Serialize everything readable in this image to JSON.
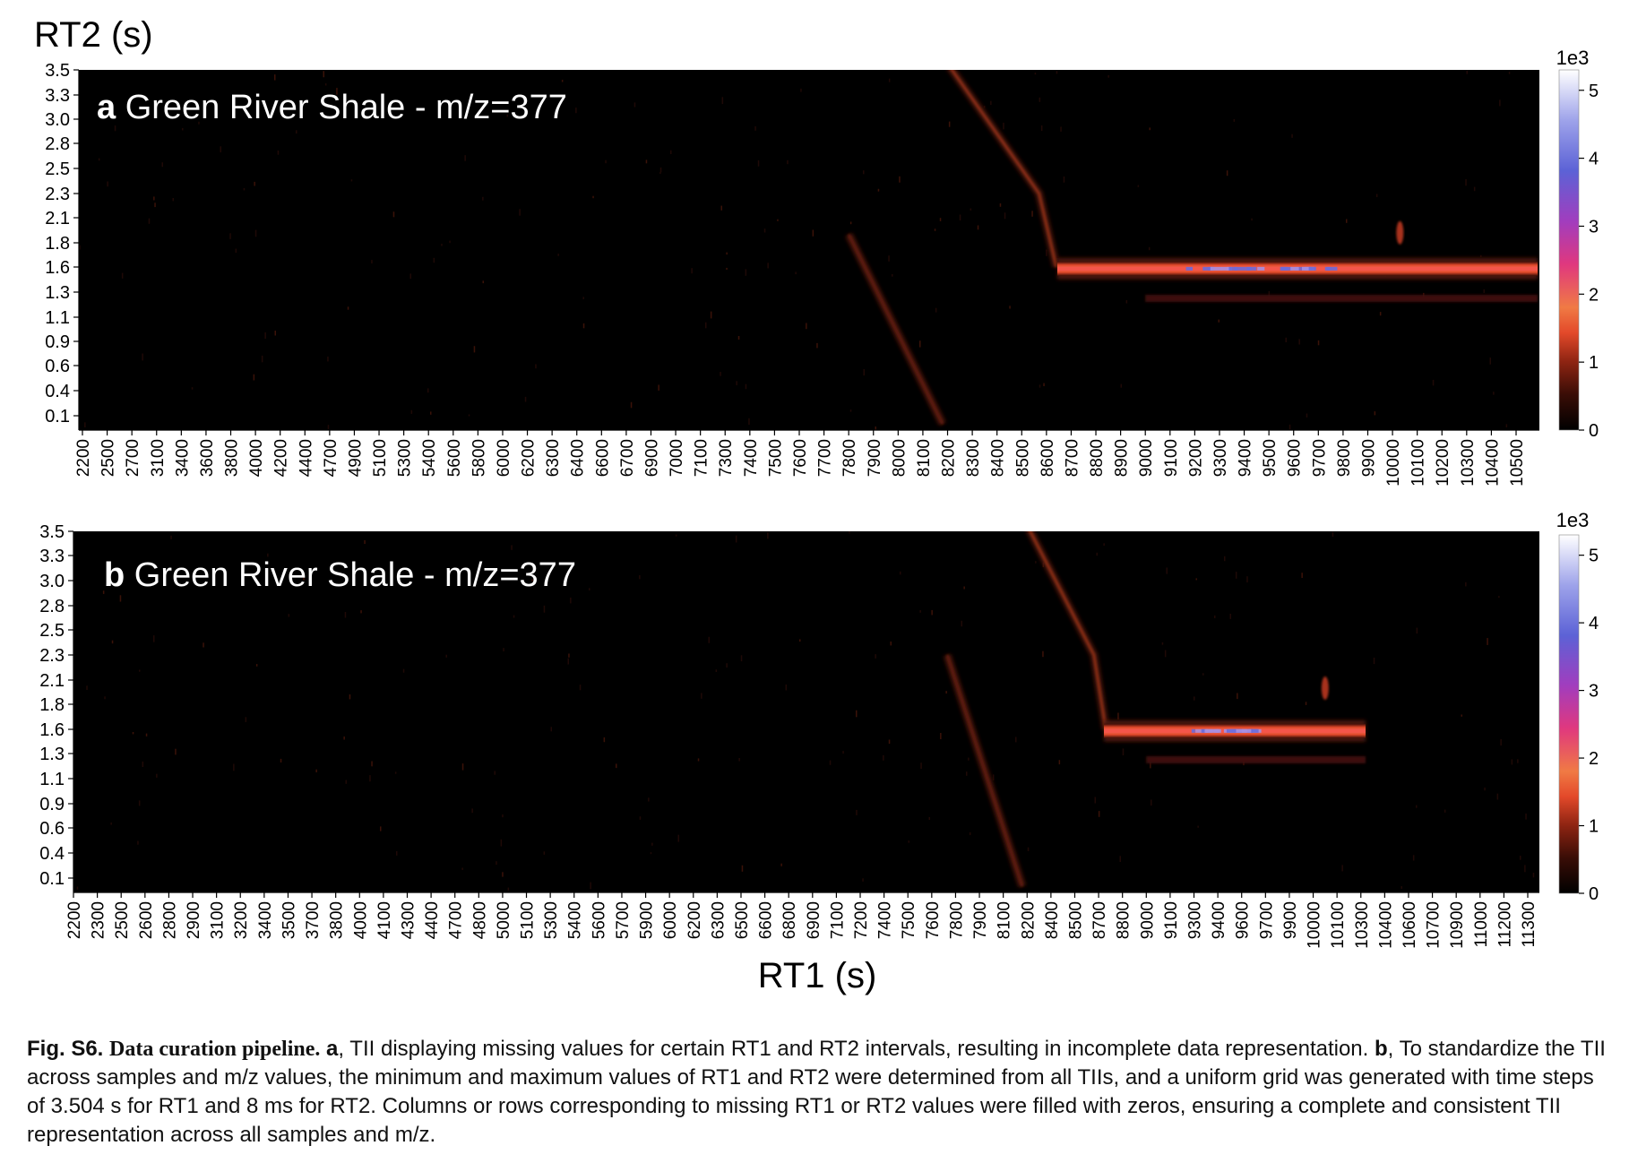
{
  "figure": {
    "ylabel": "RT2 (s)",
    "xlabel": "RT1 (s)"
  },
  "chart_data": [
    {
      "type": "heatmap",
      "panel_letter": "a",
      "title": "Green River Shale - m/z=377",
      "ylabel": "RT2 (s)",
      "xlabel": "RT1 (s)",
      "y_ticks": [
        "3.5",
        "3.3",
        "3.0",
        "2.8",
        "2.5",
        "2.3",
        "2.1",
        "1.8",
        "1.6",
        "1.3",
        "1.1",
        "0.9",
        "0.6",
        "0.4",
        "0.1"
      ],
      "x_ticks": [
        "2200",
        "2500",
        "2700",
        "3100",
        "3400",
        "3600",
        "3800",
        "4000",
        "4200",
        "4400",
        "4700",
        "4900",
        "5100",
        "5300",
        "5400",
        "5600",
        "5800",
        "6000",
        "6200",
        "6300",
        "6400",
        "6600",
        "6700",
        "6900",
        "7000",
        "7100",
        "7300",
        "7400",
        "7500",
        "7600",
        "7700",
        "7800",
        "7900",
        "8000",
        "8100",
        "8200",
        "8300",
        "8400",
        "8500",
        "8600",
        "8700",
        "8800",
        "8900",
        "9000",
        "9100",
        "9200",
        "9300",
        "9400",
        "9500",
        "9600",
        "9700",
        "9800",
        "9900",
        "10000",
        "10100",
        "10200",
        "10300",
        "10400",
        "10500"
      ],
      "ylim": [
        0.0,
        3.6
      ],
      "colorbar": {
        "scale_label": "1e3",
        "ticks": [
          "0",
          "1",
          "2",
          "3",
          "4",
          "5"
        ],
        "min": 0,
        "max": 5.3,
        "colors": [
          "#000000",
          "#3a0d06",
          "#8e2412",
          "#e3492a",
          "#f07a44",
          "#e0387e",
          "#a13dbe",
          "#5c62d6",
          "#9ea3ea",
          "#ffffff"
        ]
      },
      "features": [
        {
          "name": "diagonal-artifact-upper",
          "points": [
            [
              8200,
              3.55
            ],
            [
              8570,
              2.3
            ],
            [
              8640,
              1.6
            ]
          ],
          "intensity": 1.1
        },
        {
          "name": "diagonal-artifact-lower",
          "points": [
            [
              7800,
              1.9
            ],
            [
              8180,
              0.0
            ]
          ],
          "intensity": 0.8
        },
        {
          "name": "main-band",
          "rt1_range": [
            8660,
            10560
          ],
          "rt2": 1.58,
          "peak_intensity": 4.6
        },
        {
          "name": "secondary-band",
          "rt1_range": [
            9000,
            10560
          ],
          "rt2": 1.25,
          "intensity": 0.7
        },
        {
          "name": "spot",
          "rt1": 10030,
          "rt2": 1.92,
          "intensity": 2.4
        }
      ]
    },
    {
      "type": "heatmap",
      "panel_letter": "b",
      "title": "Green River Shale - m/z=377",
      "ylabel": "RT2 (s)",
      "xlabel": "RT1 (s)",
      "y_ticks": [
        "3.5",
        "3.3",
        "3.0",
        "2.8",
        "2.5",
        "2.3",
        "2.1",
        "1.8",
        "1.6",
        "1.3",
        "1.1",
        "0.9",
        "0.6",
        "0.4",
        "0.1"
      ],
      "x_ticks": [
        "2200",
        "2300",
        "2500",
        "2600",
        "2800",
        "2900",
        "3100",
        "3200",
        "3400",
        "3500",
        "3700",
        "3800",
        "4000",
        "4100",
        "4300",
        "4400",
        "4700",
        "4800",
        "5000",
        "5100",
        "5300",
        "5400",
        "5600",
        "5700",
        "5900",
        "6000",
        "6200",
        "6300",
        "6500",
        "6600",
        "6800",
        "6900",
        "7100",
        "7200",
        "7400",
        "7500",
        "7600",
        "7800",
        "7900",
        "8100",
        "8200",
        "8400",
        "8500",
        "8700",
        "8800",
        "9000",
        "9100",
        "9300",
        "9400",
        "9600",
        "9700",
        "9900",
        "10000",
        "10100",
        "10300",
        "10400",
        "10600",
        "10700",
        "10900",
        "11000",
        "11200",
        "11300"
      ],
      "ylim": [
        0.0,
        3.6
      ],
      "colorbar": {
        "scale_label": "1e3",
        "ticks": [
          "0",
          "1",
          "2",
          "3",
          "4",
          "5"
        ],
        "min": 0,
        "max": 5.3,
        "colors": [
          "#000000",
          "#3a0d06",
          "#8e2412",
          "#e3492a",
          "#f07a44",
          "#e0387e",
          "#a13dbe",
          "#5c62d6",
          "#9ea3ea",
          "#ffffff"
        ]
      },
      "features": [
        {
          "name": "diagonal-artifact-upper",
          "points": [
            [
              8200,
              3.55
            ],
            [
              8660,
              2.3
            ],
            [
              8730,
              1.6
            ]
          ],
          "intensity": 1.1
        },
        {
          "name": "diagonal-artifact-lower",
          "points": [
            [
              7730,
              2.3
            ],
            [
              8180,
              0.0
            ]
          ],
          "intensity": 0.8
        },
        {
          "name": "main-band",
          "rt1_range": [
            8750,
            10600
          ],
          "rt2": 1.58,
          "peak_intensity": 4.6
        },
        {
          "name": "secondary-band",
          "rt1_range": [
            9000,
            10600
          ],
          "rt2": 1.25,
          "intensity": 0.7
        },
        {
          "name": "spot",
          "rt1": 10050,
          "rt2": 2.0,
          "intensity": 2.4
        }
      ]
    }
  ],
  "caption": {
    "fig_label": "Fig. S6.",
    "title": "Data curation pipeline.",
    "part_a_letter": "a",
    "part_a_text": ", TII displaying missing values for certain RT1 and RT2 intervals, resulting in incomplete data representation.",
    "part_b_letter": "b",
    "part_b_text": ", To standardize the TII across samples and m/z values, the minimum and maximum values of RT1 and RT2 were determined from all TIIs, and a uniform grid was generated with time steps of 3.504 s for RT1 and 8 ms for RT2. Columns or rows corresponding to missing RT1 or RT2 values were filled with zeros, ensuring a complete and consistent TII representation across all samples and m/z."
  }
}
